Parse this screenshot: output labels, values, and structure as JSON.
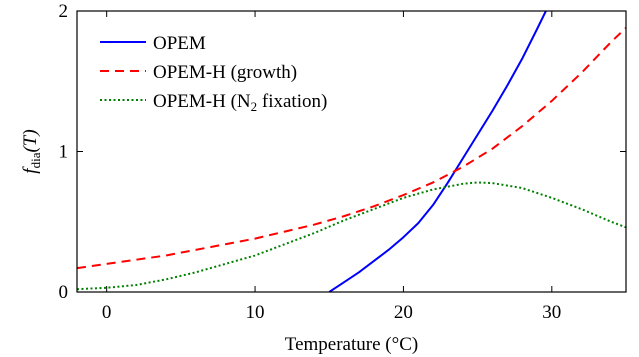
{
  "chart_data": {
    "type": "line",
    "title": "",
    "xlabel": "Temperature (°C)",
    "ylabel_main": "f",
    "ylabel_sub": "dia",
    "ylabel_arg": "(T)",
    "xlim": [
      -2,
      35
    ],
    "ylim": [
      0,
      2
    ],
    "xticks": [
      0,
      10,
      20,
      30
    ],
    "yticks": [
      0,
      1,
      2
    ],
    "grid": false,
    "legend_position": "top-left",
    "series": [
      {
        "name": "OPEM",
        "color": "#0000ff",
        "dash": "solid",
        "x": [
          15,
          16,
          17,
          18,
          19,
          20,
          21,
          22,
          23,
          24,
          25,
          26,
          27,
          28,
          29,
          29.6
        ],
        "y": [
          0.0,
          0.07,
          0.14,
          0.22,
          0.3,
          0.39,
          0.49,
          0.62,
          0.78,
          0.95,
          1.12,
          1.29,
          1.47,
          1.66,
          1.87,
          2.0
        ]
      },
      {
        "name": "OPEM-H (growth)",
        "color": "#ff0000",
        "dash": "dashed",
        "x": [
          -2,
          0,
          2,
          4,
          6,
          8,
          10,
          12,
          14,
          16,
          18,
          20,
          22,
          24,
          26,
          28,
          30,
          32,
          34,
          35
        ],
        "y": [
          0.17,
          0.2,
          0.23,
          0.26,
          0.3,
          0.34,
          0.38,
          0.43,
          0.48,
          0.54,
          0.61,
          0.69,
          0.78,
          0.89,
          1.02,
          1.18,
          1.36,
          1.56,
          1.78,
          1.88
        ]
      },
      {
        "name_main": "OPEM-H (N",
        "name_sub": "2",
        "name_rest": " fixation)",
        "color": "#008000",
        "dash": "dotted",
        "x": [
          -2,
          0,
          2,
          4,
          6,
          8,
          10,
          12,
          14,
          16,
          18,
          20,
          22,
          24,
          25,
          26,
          28,
          30,
          32,
          34,
          35
        ],
        "y": [
          0.02,
          0.03,
          0.05,
          0.09,
          0.14,
          0.2,
          0.26,
          0.34,
          0.42,
          0.51,
          0.59,
          0.67,
          0.73,
          0.77,
          0.78,
          0.775,
          0.74,
          0.67,
          0.59,
          0.5,
          0.46
        ]
      }
    ]
  }
}
